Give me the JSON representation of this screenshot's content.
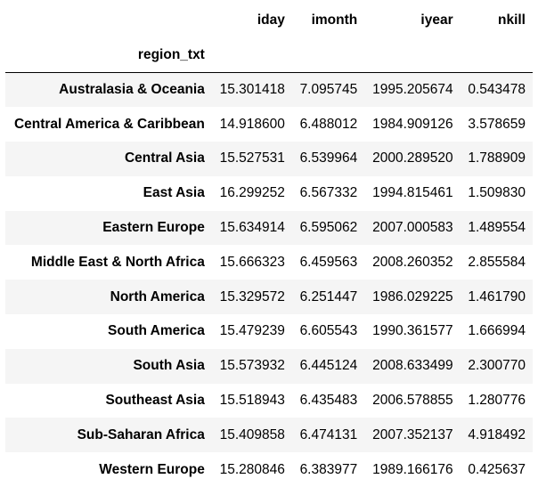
{
  "table": {
    "index_name": "region_txt",
    "columns": [
      "iday",
      "imonth",
      "iyear",
      "nkill"
    ],
    "rows": [
      {
        "region": "Australasia & Oceania",
        "values": [
          "15.301418",
          "7.095745",
          "1995.205674",
          "0.543478"
        ]
      },
      {
        "region": "Central America & Caribbean",
        "values": [
          "14.918600",
          "6.488012",
          "1984.909126",
          "3.578659"
        ]
      },
      {
        "region": "Central Asia",
        "values": [
          "15.527531",
          "6.539964",
          "2000.289520",
          "1.788909"
        ]
      },
      {
        "region": "East Asia",
        "values": [
          "16.299252",
          "6.567332",
          "1994.815461",
          "1.509830"
        ]
      },
      {
        "region": "Eastern Europe",
        "values": [
          "15.634914",
          "6.595062",
          "2007.000583",
          "1.489554"
        ]
      },
      {
        "region": "Middle East & North Africa",
        "values": [
          "15.666323",
          "6.459563",
          "2008.260352",
          "2.855584"
        ]
      },
      {
        "region": "North America",
        "values": [
          "15.329572",
          "6.251447",
          "1986.029225",
          "1.461790"
        ]
      },
      {
        "region": "South America",
        "values": [
          "15.479239",
          "6.605543",
          "1990.361577",
          "1.666994"
        ]
      },
      {
        "region": "South Asia",
        "values": [
          "15.573932",
          "6.445124",
          "2008.633499",
          "2.300770"
        ]
      },
      {
        "region": "Southeast Asia",
        "values": [
          "15.518943",
          "6.435483",
          "2006.578855",
          "1.280776"
        ]
      },
      {
        "region": "Sub-Saharan Africa",
        "values": [
          "15.409858",
          "6.474131",
          "2007.352137",
          "4.918492"
        ]
      },
      {
        "region": "Western Europe",
        "values": [
          "15.280846",
          "6.383977",
          "1989.166176",
          "0.425637"
        ]
      }
    ]
  },
  "colors": {
    "stripe": "#f5f5f5",
    "background": "#ffffff",
    "text": "#000000"
  }
}
